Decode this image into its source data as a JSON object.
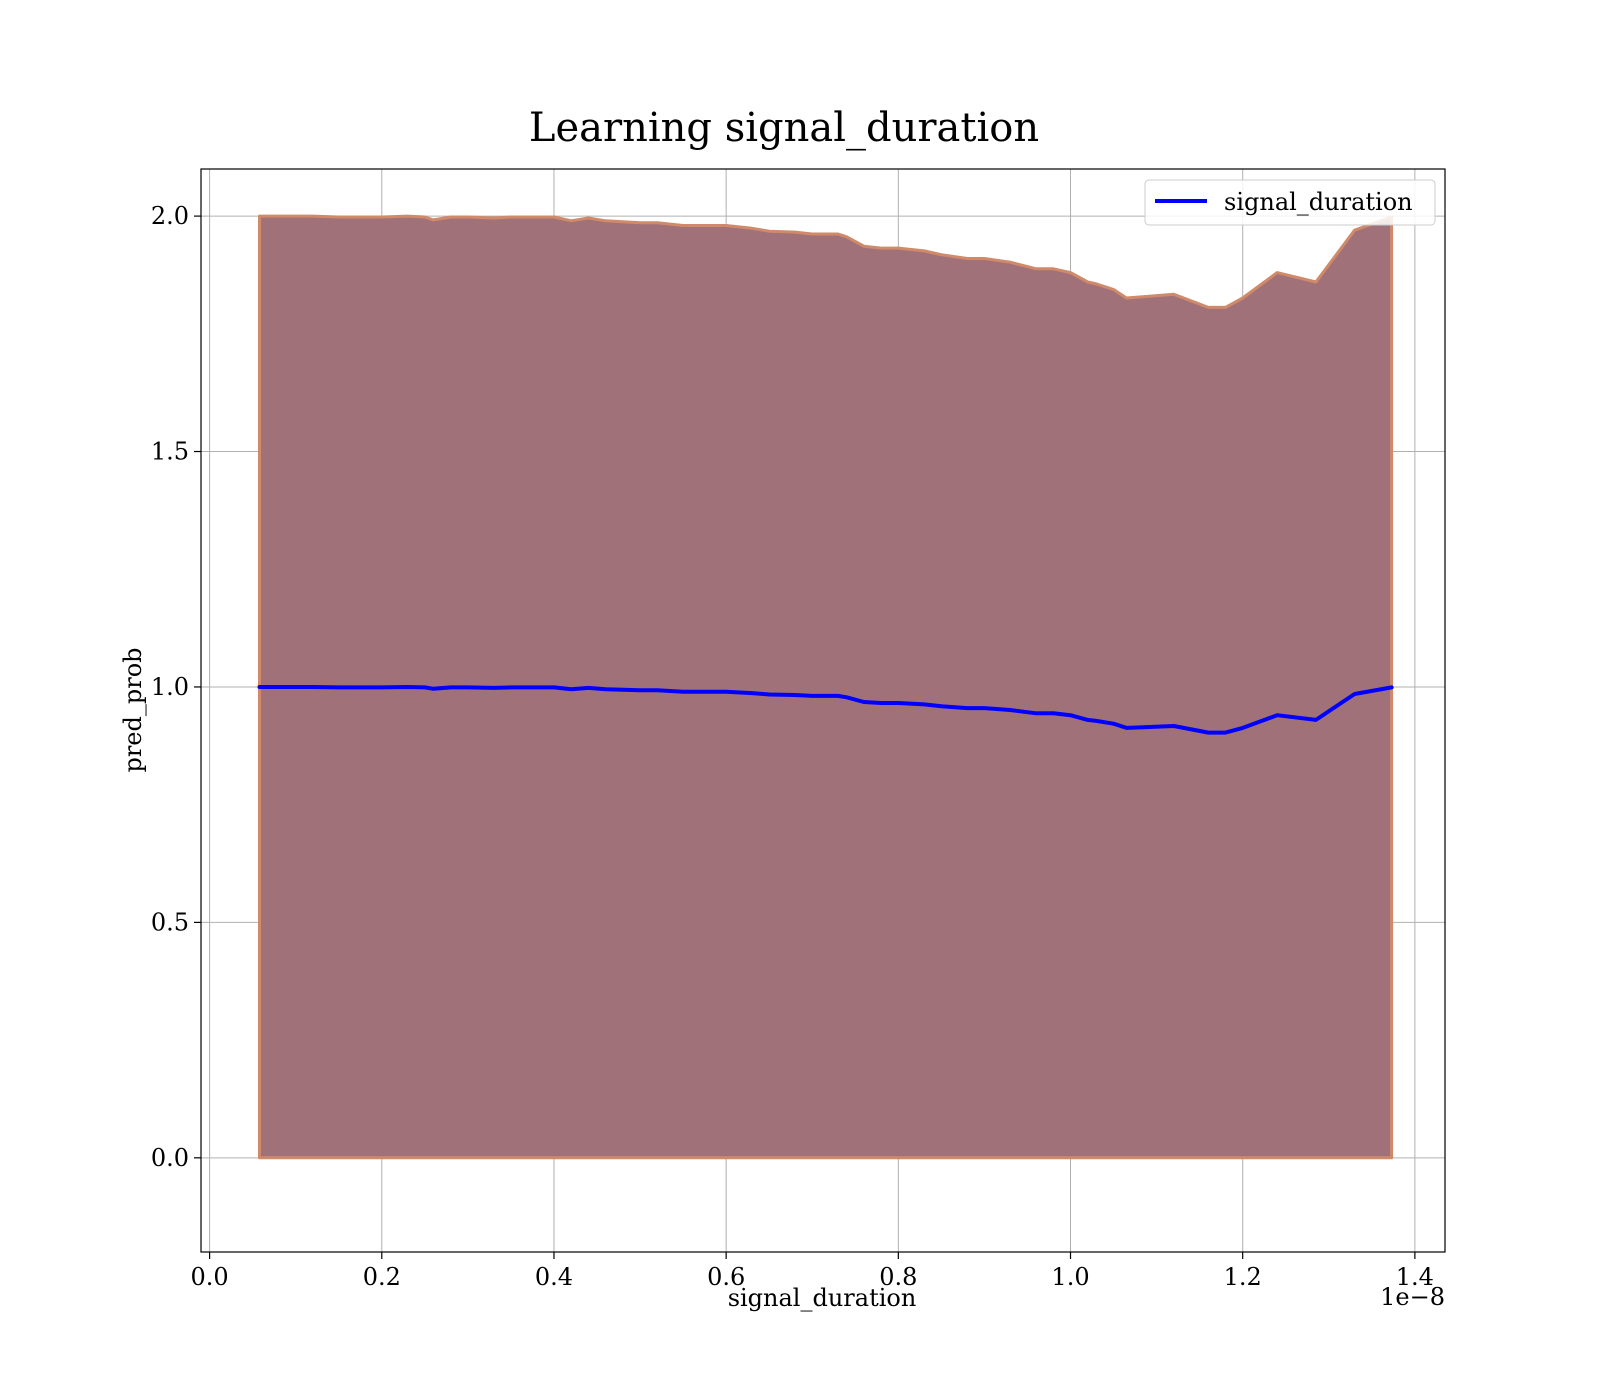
{
  "chart_data": {
    "type": "line",
    "title": "Learning signal_duration",
    "xlabel": "signal_duration",
    "ylabel": "pred_prob",
    "x_offset_text": "1e−8",
    "x_tick_values": [
      0.0,
      0.2,
      0.4,
      0.6,
      0.8,
      1.0,
      1.2,
      1.4
    ],
    "x_tick_labels": [
      "0.0",
      "0.2",
      "0.4",
      "0.6",
      "0.8",
      "1.0",
      "1.2",
      "1.4"
    ],
    "y_tick_values": [
      0.0,
      0.5,
      1.0,
      1.5,
      2.0
    ],
    "y_tick_labels": [
      "0.0",
      "0.5",
      "1.0",
      "1.5",
      "2.0"
    ],
    "xlim": [
      -0.01,
      1.435
    ],
    "ylim": [
      -0.2,
      2.1
    ],
    "grid": true,
    "legend_position": "top-right",
    "series": [
      {
        "name": "signal_duration",
        "color": "#0000ff",
        "x": [
          0.058,
          0.08,
          0.1,
          0.12,
          0.15,
          0.17,
          0.2,
          0.23,
          0.25,
          0.26,
          0.28,
          0.3,
          0.33,
          0.35,
          0.38,
          0.4,
          0.42,
          0.44,
          0.46,
          0.5,
          0.52,
          0.55,
          0.58,
          0.6,
          0.63,
          0.65,
          0.68,
          0.7,
          0.73,
          0.74,
          0.76,
          0.78,
          0.8,
          0.83,
          0.85,
          0.88,
          0.9,
          0.93,
          0.96,
          0.98,
          1.0,
          1.02,
          1.03,
          1.05,
          1.065,
          1.12,
          1.16,
          1.18,
          1.2,
          1.24,
          1.285,
          1.33,
          1.373
        ],
        "values": [
          1.0,
          1.0,
          1.0,
          1.0,
          0.999,
          0.999,
          0.999,
          1.0,
          0.999,
          0.996,
          0.999,
          0.999,
          0.998,
          0.999,
          0.999,
          0.999,
          0.995,
          0.998,
          0.995,
          0.993,
          0.993,
          0.99,
          0.99,
          0.99,
          0.987,
          0.984,
          0.983,
          0.981,
          0.981,
          0.978,
          0.968,
          0.966,
          0.966,
          0.963,
          0.959,
          0.955,
          0.955,
          0.951,
          0.944,
          0.944,
          0.94,
          0.93,
          0.928,
          0.922,
          0.913,
          0.917,
          0.903,
          0.903,
          0.913,
          0.94,
          0.93,
          0.985,
          0.999
        ]
      }
    ],
    "band": {
      "fill_color": "#a1717a",
      "edge_color": "#d08a6a",
      "upper": [
        2.0,
        2.0,
        2.0,
        2.0,
        1.998,
        1.998,
        1.998,
        2.0,
        1.998,
        1.992,
        1.998,
        1.998,
        1.996,
        1.998,
        1.998,
        1.998,
        1.99,
        1.996,
        1.99,
        1.986,
        1.986,
        1.98,
        1.98,
        1.98,
        1.974,
        1.968,
        1.966,
        1.962,
        1.962,
        1.956,
        1.936,
        1.932,
        1.932,
        1.926,
        1.918,
        1.91,
        1.91,
        1.902,
        1.888,
        1.888,
        1.88,
        1.86,
        1.856,
        1.844,
        1.826,
        1.834,
        1.806,
        1.806,
        1.826,
        1.88,
        1.86,
        1.97,
        1.998
      ],
      "lower": [
        0.0,
        0.0,
        0.0,
        0.0,
        0.0,
        0.0,
        0.0,
        0.0,
        0.0,
        0.0,
        0.0,
        0.0,
        0.0,
        0.0,
        0.0,
        0.0,
        0.0,
        0.0,
        0.0,
        0.0,
        0.0,
        0.0,
        0.0,
        0.0,
        0.0,
        0.0,
        0.0,
        0.0,
        0.0,
        0.0,
        0.0,
        0.0,
        0.0,
        0.0,
        0.0,
        0.0,
        0.0,
        0.0,
        0.0,
        0.0,
        0.0,
        0.0,
        0.0,
        0.0,
        0.0,
        0.0,
        0.0,
        0.0,
        0.0,
        0.0,
        0.0,
        0.0,
        0.0
      ]
    }
  }
}
